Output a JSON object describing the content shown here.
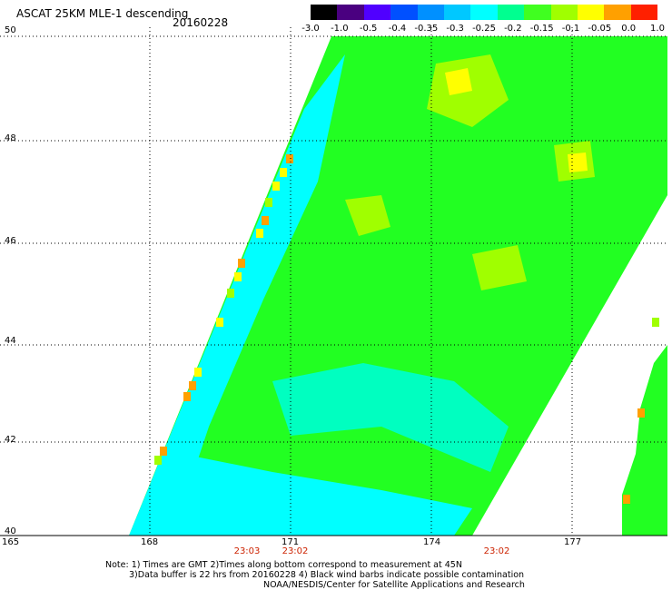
{
  "header": {
    "title": "ASCAT 25KM MLE-1 descending",
    "date": "20160228"
  },
  "colorbar": {
    "labels": [
      "-3.0",
      "-1.0",
      "-0.5",
      "-0.4",
      "-0.35",
      "-0.3",
      "-0.25",
      "-0.2",
      "-0.15",
      "-0.1",
      "-0.05",
      "0.0",
      "1.0"
    ],
    "colors": [
      "#000000",
      "#4a0080",
      "#5000ff",
      "#0050ff",
      "#0090ff",
      "#00c8ff",
      "#00ffff",
      "#00ff90",
      "#40ff20",
      "#a0ff00",
      "#ffff00",
      "#ffa000",
      "#ff2000"
    ]
  },
  "axes": {
    "lat_labels": [
      "50",
      "48",
      "46",
      "44",
      "42",
      "40"
    ],
    "lon_labels": [
      "165",
      "168",
      "171",
      "174",
      "177"
    ],
    "times": [
      "23:03",
      "23:02",
      "23:02"
    ]
  },
  "notes": {
    "line1": "Note: 1) Times are GMT 2)Times along bottom correspond to measurement at 45N",
    "line2": "3)Data buffer is 22 hrs from 20160228 4) Black wind barbs indicate possible contamination",
    "line3": "NOAA/NESDIS/Center for Satellite Applications and Research"
  },
  "colors": {
    "green": "#22ff22",
    "cyan": "#00ffff",
    "lime": "#a0ff00",
    "yellow": "#ffff00",
    "orange": "#ffa000",
    "time_red": "#cc2200"
  }
}
